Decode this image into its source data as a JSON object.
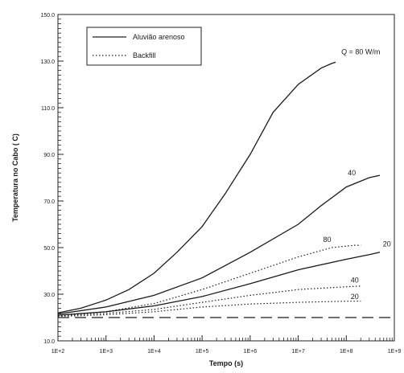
{
  "chart_data": {
    "type": "line",
    "xscale": "log",
    "xlim": [
      100,
      1000000000
    ],
    "ylim": [
      10,
      150
    ],
    "xlabel": "Tempo (s)",
    "ylabel": "Temperatura no Cabo ( C)",
    "xticks": [
      {
        "value": 100,
        "label": "1E+2"
      },
      {
        "value": 1000,
        "label": "1E+3"
      },
      {
        "value": 10000,
        "label": "1E+4"
      },
      {
        "value": 100000,
        "label": "1E+5"
      },
      {
        "value": 1000000,
        "label": "1E+6"
      },
      {
        "value": 10000000,
        "label": "1E+7"
      },
      {
        "value": 100000000,
        "label": "1E+8"
      },
      {
        "value": 1000000000,
        "label": "1E+9"
      }
    ],
    "yticks": [
      {
        "value": 10,
        "label": "10.0"
      },
      {
        "value": 30,
        "label": "30.0"
      },
      {
        "value": 50,
        "label": "50.0"
      },
      {
        "value": 70,
        "label": "70.0"
      },
      {
        "value": 90,
        "label": "90.0"
      },
      {
        "value": 110,
        "label": "110.0"
      },
      {
        "value": 130,
        "label": "130.0"
      },
      {
        "value": 150,
        "label": "150.0"
      }
    ],
    "legend": {
      "placement": "top-left",
      "entries": [
        {
          "label": "Aluvião arenoso",
          "style": "solid"
        },
        {
          "label": "Backfill",
          "style": "dotted"
        }
      ]
    },
    "series": [
      {
        "group": "Aluvião arenoso",
        "style": "solid",
        "label": "Q = 80 W/m",
        "points": [
          [
            100,
            22
          ],
          [
            300,
            24
          ],
          [
            1000,
            27.5
          ],
          [
            3000,
            32
          ],
          [
            10000,
            39
          ],
          [
            30000,
            48
          ],
          [
            100000,
            59
          ],
          [
            300000,
            73
          ],
          [
            1000000,
            90
          ],
          [
            3000000,
            108
          ],
          [
            10000000,
            120
          ],
          [
            30000000,
            127
          ],
          [
            50000000,
            129
          ],
          [
            60000000,
            129.5
          ]
        ]
      },
      {
        "group": "Aluvião arenoso",
        "style": "solid",
        "label": "40",
        "points": [
          [
            100,
            21.5
          ],
          [
            1000,
            24.5
          ],
          [
            10000,
            29.5
          ],
          [
            100000,
            37
          ],
          [
            1000000,
            48
          ],
          [
            10000000,
            60
          ],
          [
            30000000,
            68
          ],
          [
            100000000,
            76
          ],
          [
            300000000,
            80
          ],
          [
            500000000,
            81
          ]
        ]
      },
      {
        "group": "Aluvião arenoso",
        "style": "solid",
        "label": "20",
        "points": [
          [
            100,
            21
          ],
          [
            1000,
            22.5
          ],
          [
            10000,
            25
          ],
          [
            100000,
            29
          ],
          [
            1000000,
            34.5
          ],
          [
            10000000,
            40.5
          ],
          [
            100000000,
            45
          ],
          [
            300000000,
            47
          ],
          [
            500000000,
            48
          ]
        ]
      },
      {
        "group": "Backfill",
        "style": "dotted",
        "label": "80",
        "points": [
          [
            100,
            21
          ],
          [
            1000,
            22.5
          ],
          [
            10000,
            26
          ],
          [
            100000,
            32
          ],
          [
            1000000,
            39
          ],
          [
            10000000,
            46
          ],
          [
            50000000,
            50
          ],
          [
            150000000,
            51
          ],
          [
            200000000,
            51
          ]
        ]
      },
      {
        "group": "Backfill",
        "style": "dotted",
        "label": "40",
        "points": [
          [
            100,
            20.8
          ],
          [
            1000,
            21.8
          ],
          [
            10000,
            23.5
          ],
          [
            100000,
            26.5
          ],
          [
            1000000,
            29.5
          ],
          [
            10000000,
            32
          ],
          [
            100000000,
            33.2
          ],
          [
            200000000,
            33.5
          ]
        ]
      },
      {
        "group": "Backfill",
        "style": "dotted",
        "label": "20",
        "points": [
          [
            100,
            20.5
          ],
          [
            1000,
            21.2
          ],
          [
            10000,
            22.5
          ],
          [
            100000,
            24.5
          ],
          [
            1000000,
            25.8
          ],
          [
            10000000,
            26.5
          ],
          [
            100000000,
            27
          ],
          [
            200000000,
            27
          ]
        ]
      },
      {
        "group": "",
        "style": "dashed",
        "label": "",
        "points": [
          [
            100,
            20
          ],
          [
            1000000000,
            20
          ]
        ]
      }
    ],
    "annotations": [
      {
        "text": "Q = 80 W/m",
        "x": 200000000,
        "y": 133
      },
      {
        "text": "40",
        "x": 130000000,
        "y": 81
      },
      {
        "text": "80",
        "x": 40000000,
        "y": 52.5
      },
      {
        "text": "20",
        "x": 700000000,
        "y": 50.5
      },
      {
        "text": "40",
        "x": 150000000,
        "y": 35
      },
      {
        "text": "20",
        "x": 150000000,
        "y": 28
      }
    ]
  }
}
